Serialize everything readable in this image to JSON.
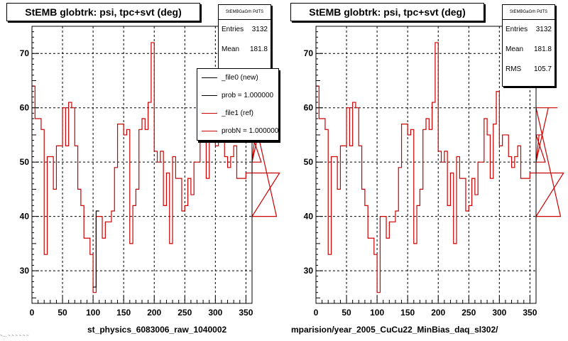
{
  "chart_data": [
    {
      "type": "line",
      "title": "StEMB globtrk: psi, tpc+svt (deg)",
      "xlim": [
        0,
        360
      ],
      "ylim": [
        24,
        75
      ],
      "x_ticks": [
        0,
        50,
        100,
        150,
        200,
        250,
        300,
        350
      ],
      "y_ticks": [
        30,
        40,
        50,
        60,
        70
      ],
      "grid": true,
      "xlabel": "st_physics_6083006_raw_1040002",
      "bin_width": 5,
      "series": [
        {
          "name": "_file1 (ref)",
          "color": "#cc0000",
          "line_style": "step",
          "values": [
            64,
            58,
            58,
            56,
            33,
            51,
            51,
            45,
            53,
            53,
            60,
            53,
            61,
            60,
            53,
            45,
            42,
            36,
            36,
            33,
            26,
            40,
            40,
            36,
            39,
            39,
            41,
            49,
            57,
            57,
            55,
            56,
            35,
            42,
            45,
            56,
            58,
            56,
            61,
            72,
            52,
            50,
            52,
            42,
            48,
            35,
            51,
            47,
            47,
            41,
            42,
            47,
            44,
            50,
            50,
            58,
            55,
            47,
            57,
            63,
            53,
            55,
            55,
            51,
            49,
            51,
            53,
            47,
            47,
            47,
            48,
            48,
            50,
            55,
            55,
            50,
            60,
            60,
            60,
            60,
            40,
            48
          ]
        },
        {
          "name": "_file0 (new)",
          "color": "#000000",
          "line_style": "step",
          "values": [
            null,
            null,
            null,
            null,
            null,
            null,
            null,
            null,
            null,
            null,
            null,
            null,
            null,
            null,
            null,
            null,
            null,
            null,
            null,
            null,
            27,
            41,
            null,
            null,
            null,
            null,
            null,
            null,
            null,
            null,
            null,
            null,
            null,
            null,
            null,
            null,
            null,
            null,
            null,
            null,
            null,
            null,
            null,
            null,
            null,
            null,
            null,
            null,
            null,
            null,
            null,
            null,
            null,
            null,
            null,
            null,
            null,
            null,
            null,
            null,
            null,
            null,
            null,
            null,
            null,
            null,
            null,
            null,
            null,
            null,
            null,
            null,
            null,
            null,
            null,
            null,
            null,
            null,
            null,
            null,
            null,
            null
          ]
        }
      ],
      "stats": {
        "header": "StEMBGaGrh PdTS",
        "entries_label": "Entries",
        "entries": "3132",
        "mean_label": "Mean",
        "mean": "181.8"
      },
      "legend": [
        {
          "label": "_file0 (new)",
          "color": "#000000"
        },
        {
          "label": "prob = 1.000000",
          "color": "#000000"
        },
        {
          "label": "_file1 (ref)",
          "color": "#cc0000"
        },
        {
          "label": "probN = 1.000000",
          "color": "#cc0000"
        }
      ]
    },
    {
      "type": "line",
      "title": "StEMB globtrk: psi, tpc+svt (deg)",
      "xlim": [
        0,
        360
      ],
      "ylim": [
        24,
        75
      ],
      "x_ticks": [
        0,
        50,
        100,
        150,
        200,
        250,
        300,
        350
      ],
      "y_ticks": [
        30,
        40,
        50,
        60,
        70
      ],
      "grid": true,
      "xlabel": "mparision/year_2005_CuCu22_MinBias_daq_sl302/",
      "bin_width": 5,
      "series": [
        {
          "name": "ref",
          "color": "#cc0000",
          "line_style": "step",
          "values": [
            64,
            58,
            58,
            56,
            33,
            51,
            51,
            45,
            53,
            53,
            60,
            53,
            61,
            60,
            53,
            45,
            42,
            36,
            36,
            33,
            26,
            40,
            40,
            36,
            39,
            39,
            41,
            49,
            57,
            57,
            55,
            56,
            35,
            42,
            45,
            56,
            58,
            56,
            61,
            72,
            52,
            50,
            52,
            42,
            48,
            35,
            51,
            47,
            47,
            41,
            42,
            47,
            44,
            50,
            50,
            58,
            55,
            47,
            57,
            63,
            53,
            55,
            55,
            51,
            49,
            51,
            53,
            47,
            47,
            47,
            48,
            48,
            50,
            55,
            55,
            50,
            60,
            60,
            60,
            60,
            40,
            48
          ]
        }
      ],
      "stats": {
        "header": "StEMBGaGrh PdTS",
        "entries_label": "Entries",
        "entries": "3132",
        "mean_label": "Mean",
        "mean": "181.8",
        "rms_label": "RMS",
        "rms": "105.7"
      }
    }
  ],
  "footer_note": "~… ~ ~ ~ ~ ~ ~"
}
